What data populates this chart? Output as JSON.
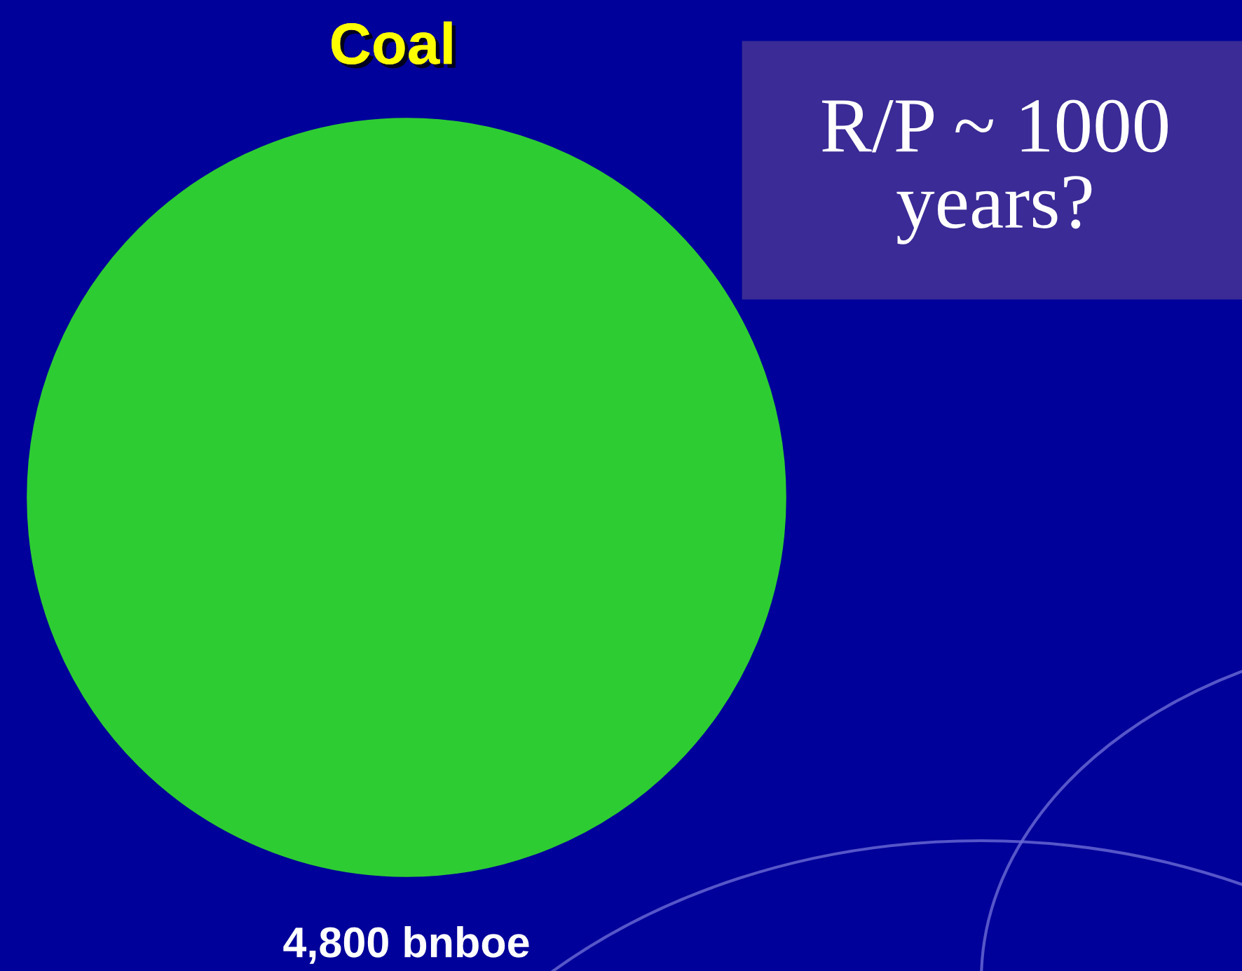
{
  "chart_data": {
    "type": "other",
    "categories": [
      "Coal"
    ],
    "values": [
      4800
    ],
    "value_labels": [
      "4,800 bnboe"
    ],
    "colors": [
      "#2ecc33"
    ],
    "annotations": [
      "R/P ~ 1000\nyears?"
    ]
  }
}
